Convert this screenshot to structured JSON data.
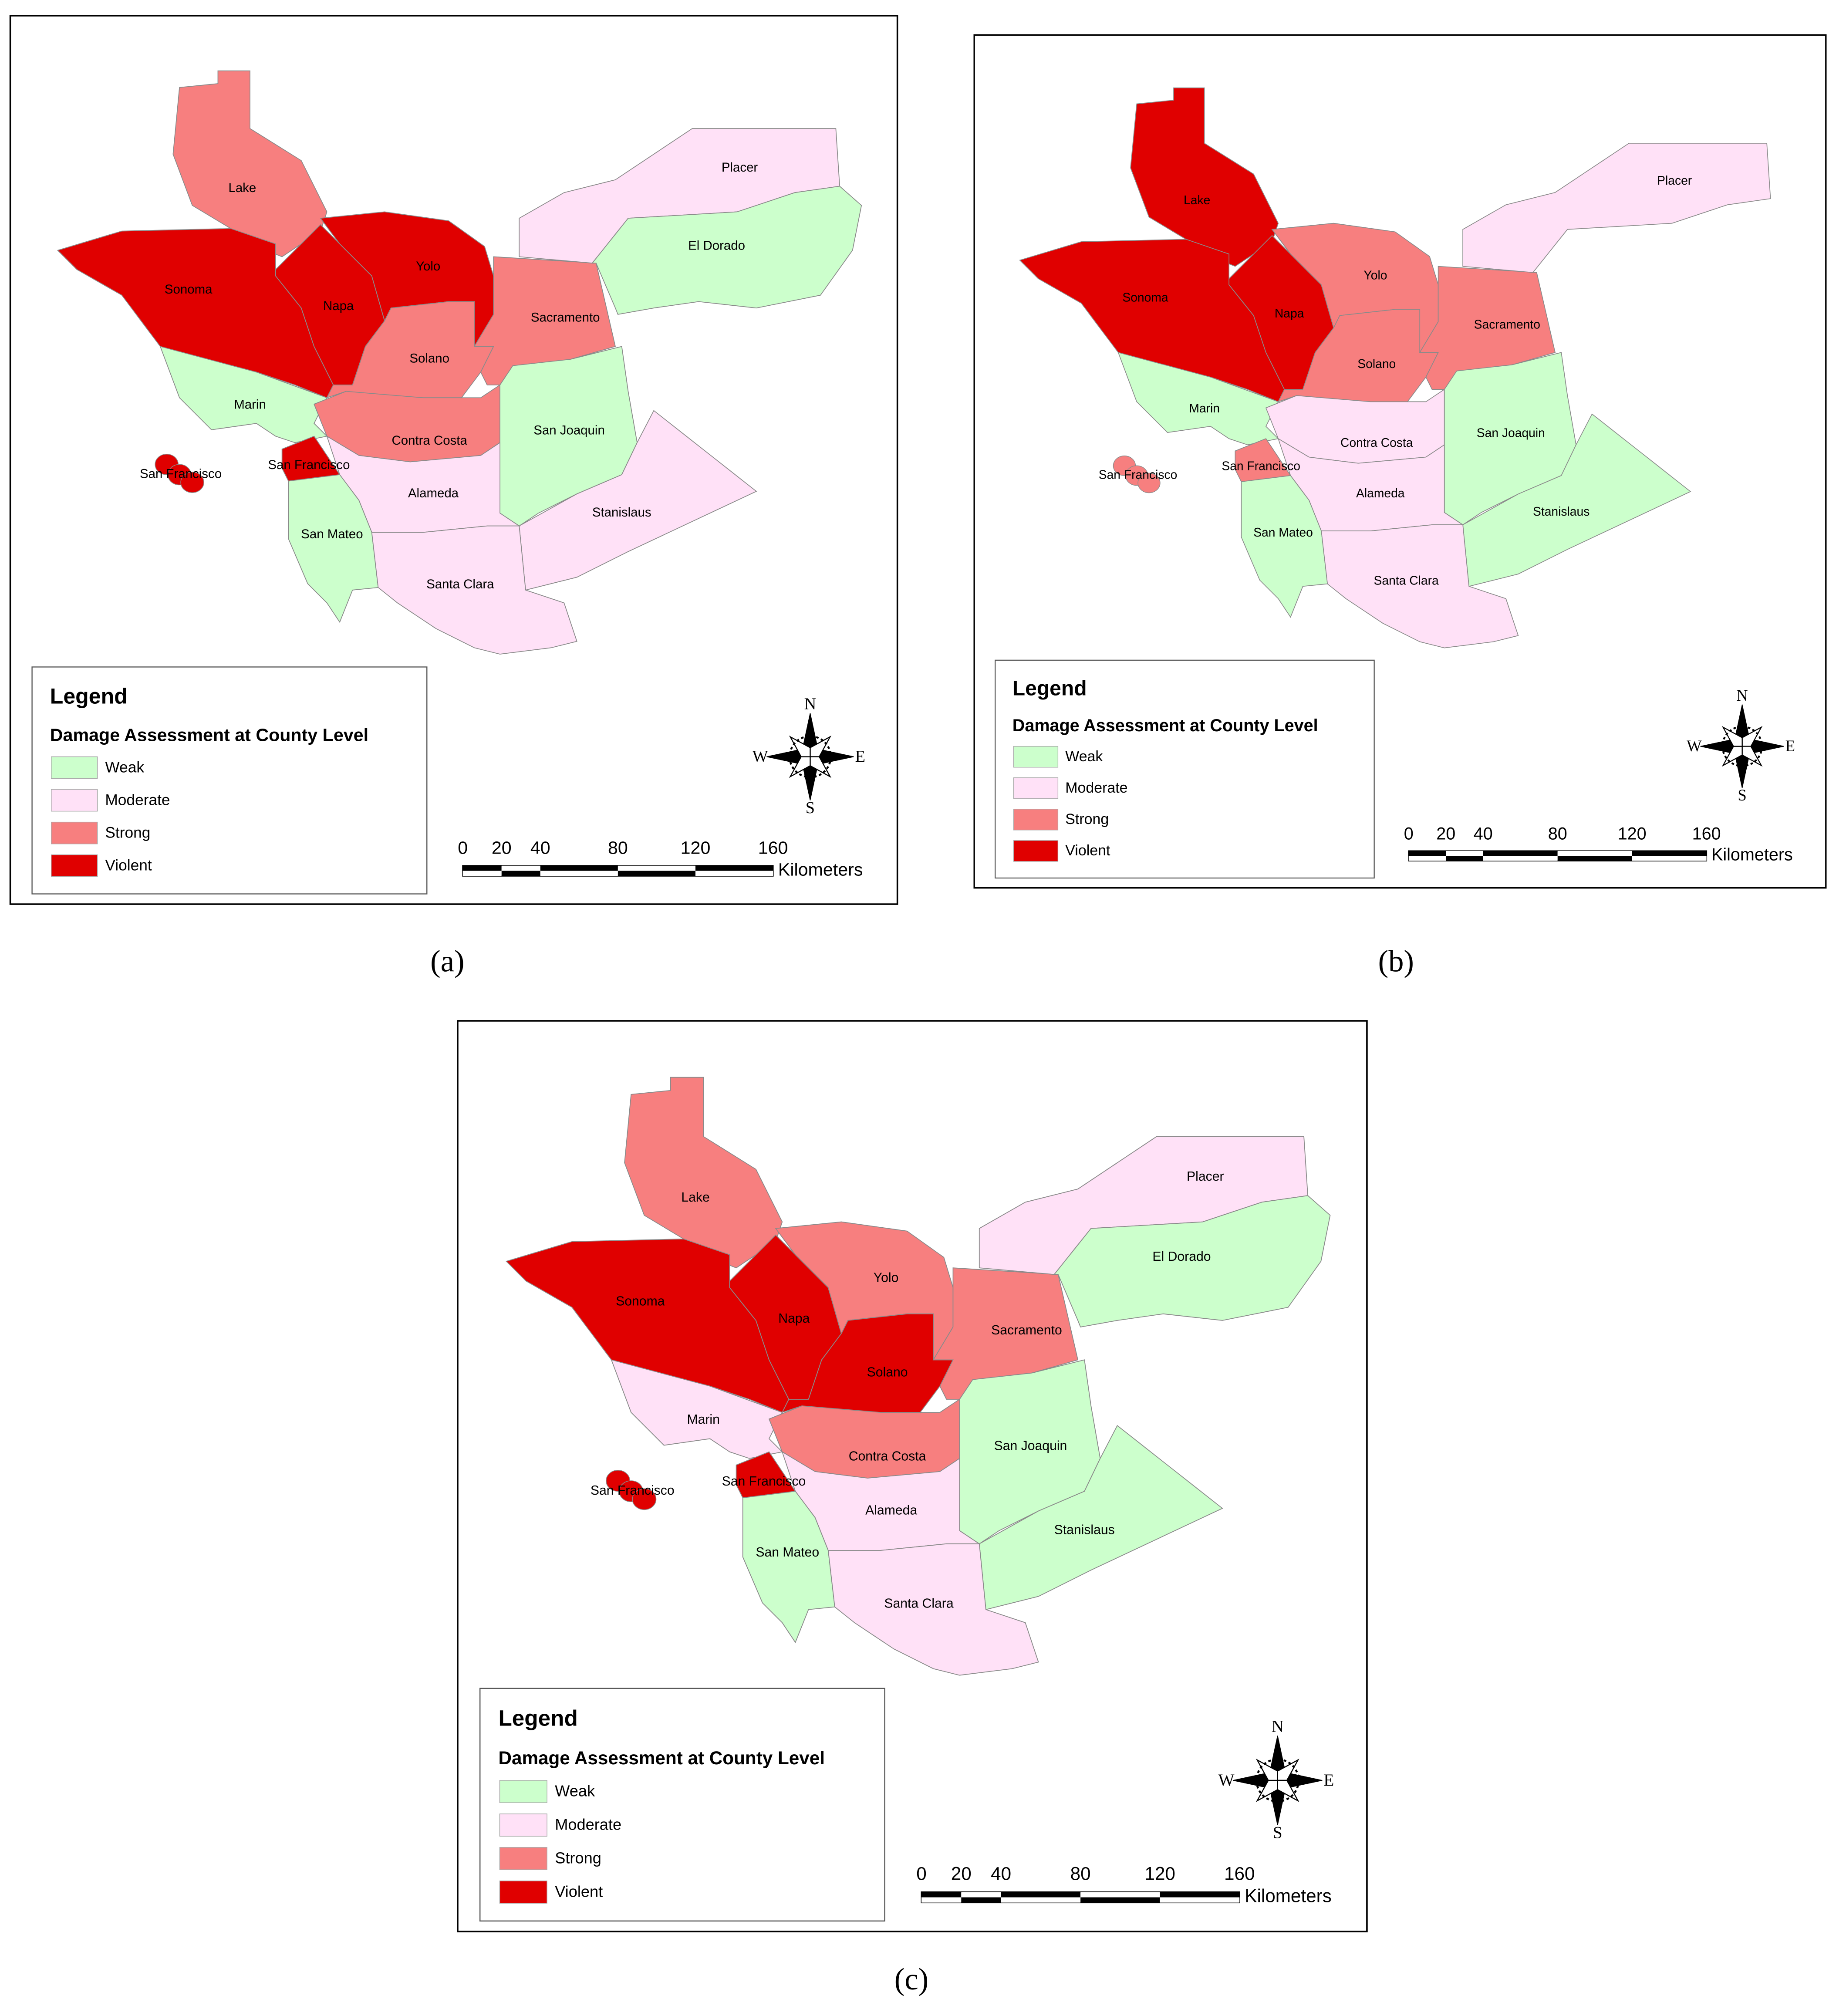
{
  "legend": {
    "title": "Legend",
    "subtitle": "Damage Assessment at County Level",
    "classes": [
      {
        "name": "Weak",
        "color": "#ccffcc"
      },
      {
        "name": "Moderate",
        "color": "#ffe1f7"
      },
      {
        "name": "Strong",
        "color": "#f77f7f"
      },
      {
        "name": "Violent",
        "color": "#e00000"
      }
    ]
  },
  "scale_bar": {
    "ticks": [
      0,
      20,
      40,
      80,
      120,
      160
    ],
    "unit": "Kilometers"
  },
  "compass": {
    "north": "N",
    "south": "S",
    "east": "E",
    "west": "W"
  },
  "panels": [
    {
      "caption": "(a)",
      "island": {
        "name": "San Francisco",
        "class": "Violent"
      },
      "counties": [
        {
          "name": "Lake",
          "class": "Strong"
        },
        {
          "name": "Sonoma",
          "class": "Violent"
        },
        {
          "name": "Napa",
          "class": "Violent"
        },
        {
          "name": "Yolo",
          "class": "Violent"
        },
        {
          "name": "Solano",
          "class": "Strong"
        },
        {
          "name": "Sacramento",
          "class": "Strong"
        },
        {
          "name": "Placer",
          "class": "Moderate"
        },
        {
          "name": "Marin",
          "class": "Weak"
        },
        {
          "name": "Contra Costa",
          "class": "Strong"
        },
        {
          "name": "San Joaquin",
          "class": "Weak"
        },
        {
          "name": "Stanislaus",
          "class": "Moderate"
        },
        {
          "name": "Alameda",
          "class": "Moderate"
        },
        {
          "name": "San Francisco",
          "class": "Violent"
        },
        {
          "name": "San Mateo",
          "class": "Weak"
        },
        {
          "name": "Santa Clara",
          "class": "Moderate"
        },
        {
          "name": "El Dorado",
          "class": "Weak"
        }
      ]
    },
    {
      "caption": "(b)",
      "island": {
        "name": "San Francisco",
        "class": "Strong"
      },
      "counties": [
        {
          "name": "Lake",
          "class": "Violent"
        },
        {
          "name": "Sonoma",
          "class": "Violent"
        },
        {
          "name": "Napa",
          "class": "Violent"
        },
        {
          "name": "Yolo",
          "class": "Strong"
        },
        {
          "name": "Solano",
          "class": "Strong"
        },
        {
          "name": "Sacramento",
          "class": "Strong"
        },
        {
          "name": "Placer",
          "class": "Moderate"
        },
        {
          "name": "Marin",
          "class": "Weak"
        },
        {
          "name": "Contra Costa",
          "class": "Moderate"
        },
        {
          "name": "San Joaquin",
          "class": "Weak"
        },
        {
          "name": "Stanislaus",
          "class": "Weak"
        },
        {
          "name": "Alameda",
          "class": "Moderate"
        },
        {
          "name": "San Francisco",
          "class": "Strong"
        },
        {
          "name": "San Mateo",
          "class": "Weak"
        },
        {
          "name": "Santa Clara",
          "class": "Moderate"
        }
      ]
    },
    {
      "caption": "(c)",
      "island": {
        "name": "San Francisco",
        "class": "Violent"
      },
      "counties": [
        {
          "name": "Lake",
          "class": "Strong"
        },
        {
          "name": "Sonoma",
          "class": "Violent"
        },
        {
          "name": "Napa",
          "class": "Violent"
        },
        {
          "name": "Yolo",
          "class": "Strong"
        },
        {
          "name": "Solano",
          "class": "Violent"
        },
        {
          "name": "Sacramento",
          "class": "Strong"
        },
        {
          "name": "Placer",
          "class": "Moderate"
        },
        {
          "name": "Marin",
          "class": "Moderate"
        },
        {
          "name": "Contra Costa",
          "class": "Strong"
        },
        {
          "name": "San Joaquin",
          "class": "Weak"
        },
        {
          "name": "Stanislaus",
          "class": "Weak"
        },
        {
          "name": "Alameda",
          "class": "Moderate"
        },
        {
          "name": "San Francisco",
          "class": "Violent"
        },
        {
          "name": "San Mateo",
          "class": "Weak"
        },
        {
          "name": "Santa Clara",
          "class": "Moderate"
        },
        {
          "name": "El Dorado",
          "class": "Weak"
        }
      ]
    }
  ]
}
